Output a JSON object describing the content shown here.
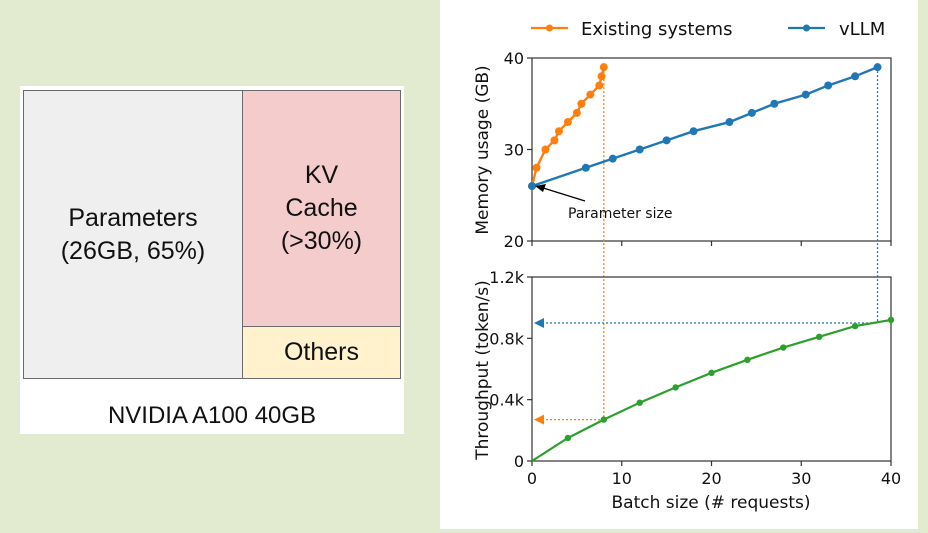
{
  "memory_breakdown": {
    "title": "NVIDIA A100 40GB",
    "segments": [
      {
        "label": "Parameters\n(26GB, 65%)",
        "color": "#efefef"
      },
      {
        "label": "KV\nCache\n(>30%)",
        "color": "#f4cccc"
      },
      {
        "label": "Others",
        "color": "#fff2cc"
      }
    ]
  },
  "chart_data": [
    {
      "type": "line",
      "title": "",
      "xlabel": "Batch size (# requests)",
      "ylabel": "Memory usage (GB)",
      "xlim": [
        0,
        40
      ],
      "ylim": [
        20,
        40
      ],
      "yticks": [
        "20",
        "30",
        "40"
      ],
      "xticks": [
        0,
        10,
        20,
        30,
        40
      ],
      "legend": {
        "placement": "top",
        "entries": [
          "Existing systems",
          "vLLM"
        ]
      },
      "annotation": {
        "text": "Parameter size",
        "points_to": [
          0,
          26
        ]
      },
      "series": [
        {
          "name": "Existing systems",
          "color": "#ff7f0e",
          "x": [
            0,
            0.5,
            1.5,
            2.5,
            3,
            4,
            5,
            5.5,
            6.5,
            7.5,
            7.75,
            8
          ],
          "y": [
            26,
            28,
            30,
            31,
            32,
            33,
            34,
            35,
            36,
            37,
            38,
            39
          ]
        },
        {
          "name": "vLLM",
          "color": "#1f77b4",
          "x": [
            0,
            6,
            9,
            12,
            15,
            18,
            22,
            24.5,
            27,
            30.5,
            33,
            36,
            38.5
          ],
          "y": [
            26,
            28,
            29,
            30,
            31,
            32,
            33,
            34,
            35,
            36,
            37,
            38,
            39
          ]
        }
      ],
      "guides": [
        {
          "series": "Existing systems",
          "x": 8
        },
        {
          "series": "vLLM",
          "x": 38.5
        }
      ]
    },
    {
      "type": "line",
      "title": "",
      "xlabel": "Batch size (# requests)",
      "ylabel": "Throughput (token/s)",
      "xlim": [
        0,
        40
      ],
      "ylim": [
        0,
        1200
      ],
      "yticks": [
        "0",
        "0.4k",
        "0.8k",
        "1.2k"
      ],
      "xticks": [
        "0",
        "10",
        "20",
        "30",
        "40"
      ],
      "series": [
        {
          "name": "Throughput",
          "color": "#2ca02c",
          "x": [
            0,
            4,
            8,
            12,
            16,
            20,
            24,
            28,
            32,
            36,
            40
          ],
          "y": [
            0,
            150,
            270,
            380,
            480,
            575,
            660,
            740,
            810,
            880,
            920
          ]
        }
      ],
      "markers": [
        {
          "series": "Existing systems",
          "color": "#ff7f0e",
          "x": 8,
          "y": 270
        },
        {
          "series": "vLLM",
          "color": "#1f77b4",
          "x": 38.5,
          "y": 900
        }
      ]
    }
  ]
}
